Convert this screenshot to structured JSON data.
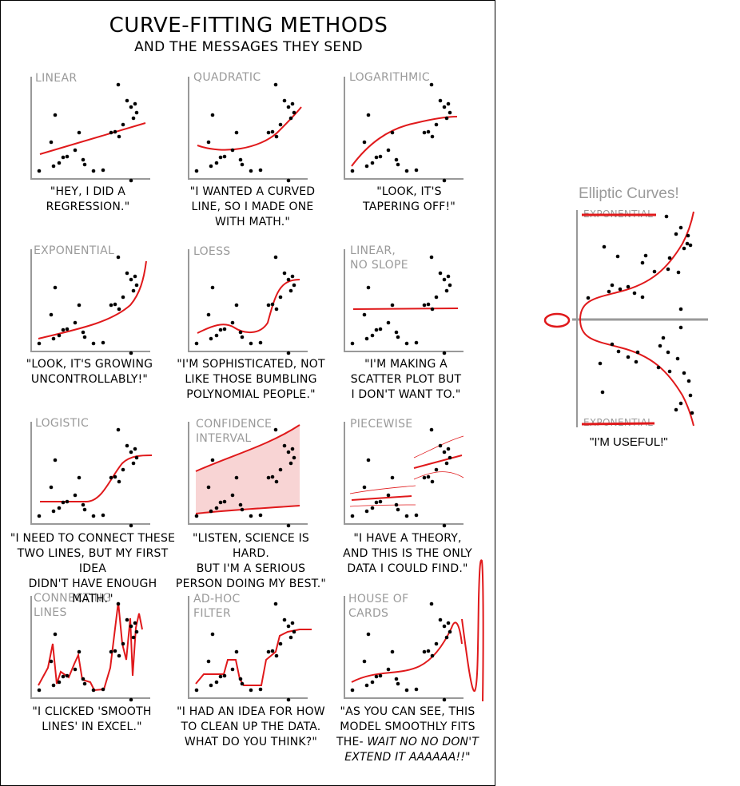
{
  "comic": {
    "title": "CURVE-FITTING METHODS",
    "subtitle": "AND THE MESSAGES THEY SEND",
    "panels": [
      {
        "title": "LINEAR",
        "caption": "\"HEY, I DID A\nREGRESSION.\""
      },
      {
        "title": "QUADRATIC",
        "caption": "\"I WANTED A CURVED\nLINE, SO I MADE ONE\nWITH MATH.\""
      },
      {
        "title": "LOGARITHMIC",
        "caption": "\"LOOK, IT'S\nTAPERING OFF!\""
      },
      {
        "title": "EXPONENTIAL",
        "caption": "\"LOOK, IT'S GROWING\nUNCONTROLLABLY!\""
      },
      {
        "title": "LOESS",
        "caption": "\"I'M SOPHISTICATED, NOT\nLIKE THOSE BUMBLING\nPOLYNOMIAL PEOPLE.\""
      },
      {
        "title": "LINEAR,\nNO SLOPE",
        "caption": "\"I'M MAKING A\nSCATTER PLOT BUT\nI DON'T WANT TO.\""
      },
      {
        "title": "LOGISTIC",
        "caption": "\"I NEED TO CONNECT THESE\nTWO LINES, BUT MY FIRST IDEA\nDIDN'T HAVE ENOUGH MATH.\""
      },
      {
        "title": "CONFIDENCE\nINTERVAL",
        "caption": "\"LISTEN, SCIENCE IS HARD.\nBUT I'M A SERIOUS\nPERSON DOING MY BEST.\""
      },
      {
        "title": "PIECEWISE",
        "caption": "\"I HAVE A THEORY,\nAND THIS IS THE ONLY\nDATA I COULD FIND.\""
      },
      {
        "title": "CONNECTING\nLINES",
        "caption": "\"I CLICKED 'SMOOTH\nLINES' IN EXCEL.\""
      },
      {
        "title": "AD-HOC\nFILTER",
        "caption": "\"I HAD AN IDEA FOR HOW\nTO CLEAN UP THE DATA.\nWHAT DO YOU THINK?\""
      },
      {
        "title": "HOUSE OF\nCARDS",
        "caption_plain": "\"AS YOU CAN SEE, THIS\nMODEL SMOOTHLY FITS\nTHE- ",
        "caption_italic": "WAIT NO NO DON'T\nEXTEND IT AAAAAA!!\""
      }
    ]
  },
  "right_panel": {
    "title": "Elliptic Curves!",
    "struck_label_top": "EXPONENTIAL",
    "struck_label_bottom": "EXPONENTIAL",
    "caption": "\"I'M USEFUL!\""
  },
  "colors": {
    "curve": "#e0191b",
    "band": "#f8d4d4",
    "axis": "#999999",
    "dot": "#000000"
  }
}
